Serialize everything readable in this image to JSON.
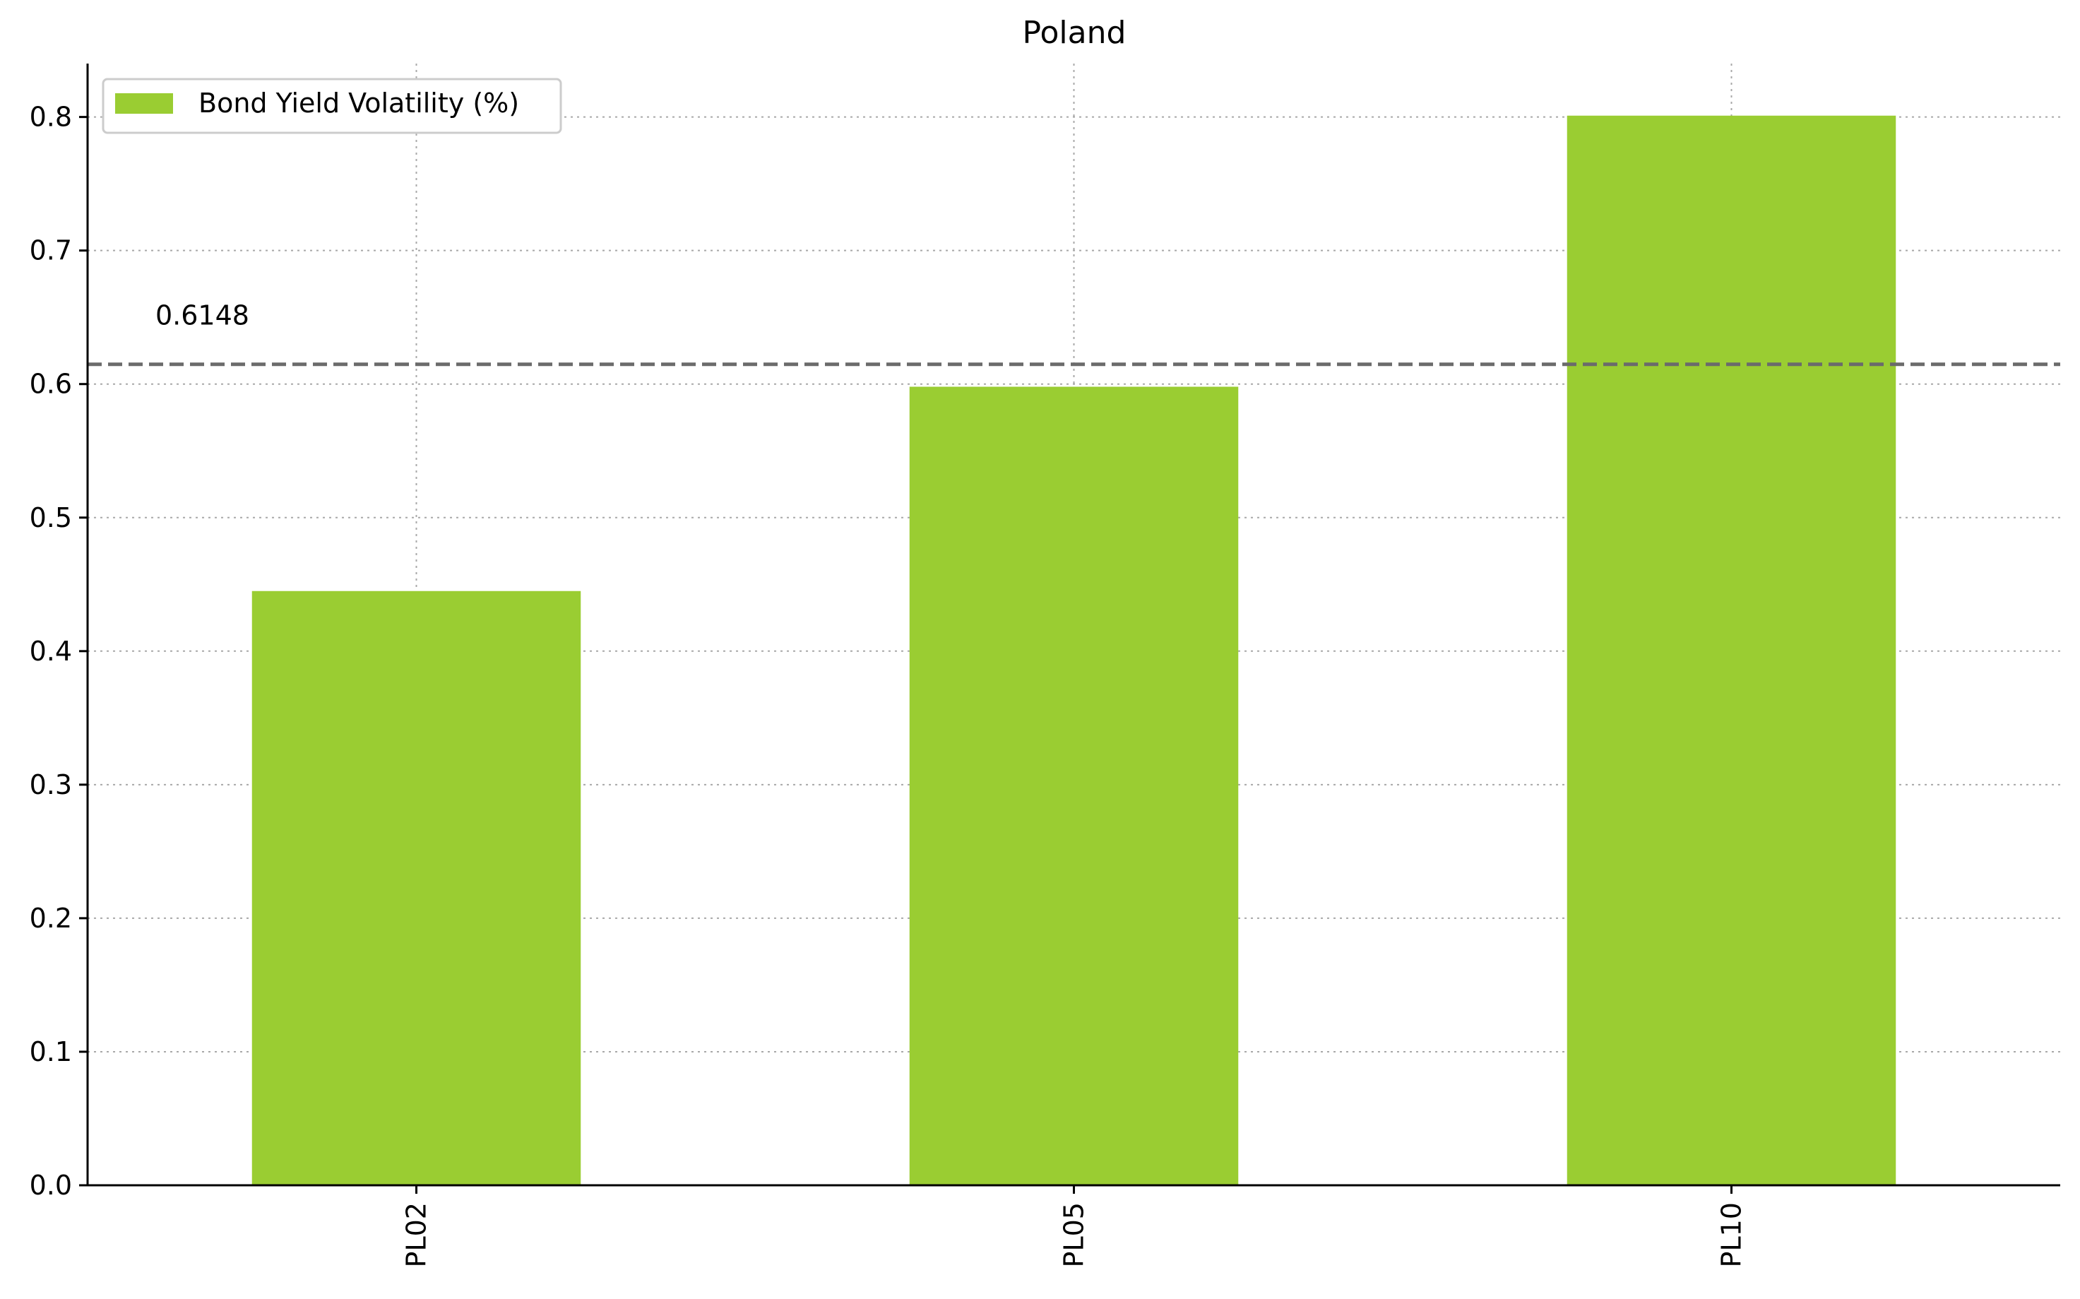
{
  "chart_data": {
    "type": "bar",
    "title": "Poland",
    "xlabel": "",
    "ylabel": "",
    "categories": [
      "PL02",
      "PL05",
      "PL10"
    ],
    "series": [
      {
        "name": "Bond Yield Volatility (%)",
        "values": [
          0.445,
          0.598,
          0.801
        ],
        "color": "#9ACD32"
      }
    ],
    "ylim": [
      0,
      0.84
    ],
    "yticks": [
      0.0,
      0.1,
      0.2,
      0.3,
      0.4,
      0.5,
      0.6,
      0.7,
      0.8
    ],
    "ytick_labels": [
      "0.0",
      "0.1",
      "0.2",
      "0.3",
      "0.4",
      "0.5",
      "0.6",
      "0.7",
      "0.8"
    ],
    "grid": true,
    "legend": "top-left",
    "reference_line": {
      "value": 0.6148,
      "label": "0.6148",
      "style": "dashed",
      "color": "#6b6b6b"
    }
  }
}
